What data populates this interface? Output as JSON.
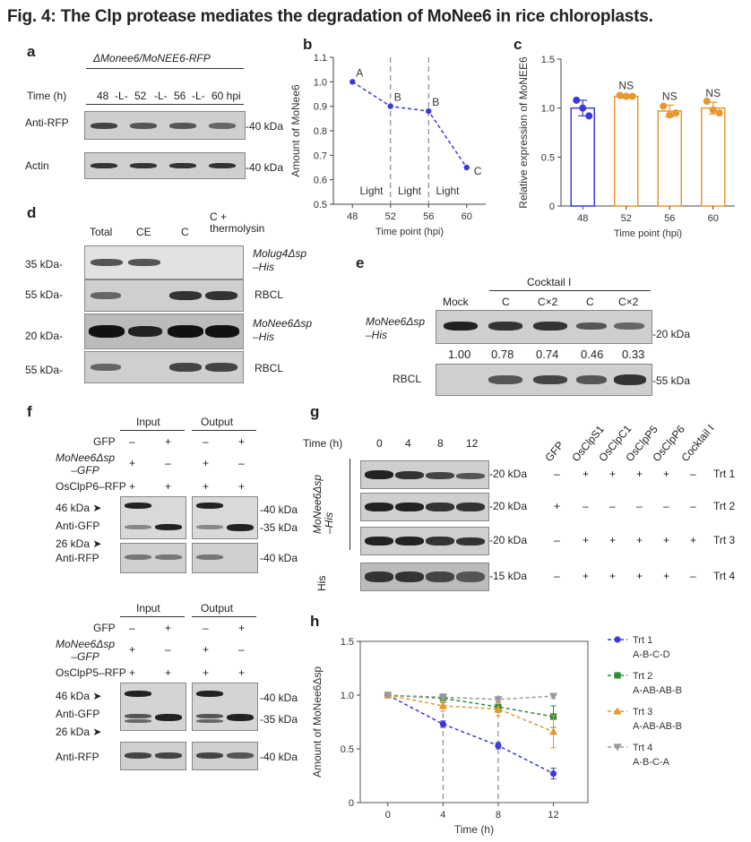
{
  "figure_title": "Fig. 4: The Clp protease mediates the degradation of MoNee6 in rice chloroplasts.",
  "panel_a": {
    "label": "a",
    "strain": "ΔMonee6/MoNEE6-RFP",
    "time_label": "Time (h)",
    "timepoints": [
      "48",
      "-L-",
      "52",
      "-L-",
      "56",
      "-L-",
      "60 hpi"
    ],
    "rows": [
      "Anti-RFP",
      "Actin"
    ],
    "kda_rfp": "-40 kDa",
    "kda_actin": "-40 kDa"
  },
  "panel_d": {
    "label": "d",
    "lanes": [
      "Total",
      "CE",
      "C",
      "C +\nthermolysin"
    ],
    "rows": [
      {
        "kda": "35 kDa-",
        "name": "Molug4Δsp\n–His"
      },
      {
        "kda": "55 kDa-",
        "name": "RBCL"
      },
      {
        "kda": "20 kDa-",
        "name": "MoNee6Δsp\n–His"
      },
      {
        "kda": "55 kDa-",
        "name": "RBCL"
      }
    ]
  },
  "panel_e": {
    "label": "e",
    "cocktail_label": "Cocktail I",
    "lanes": [
      "Mock",
      "C",
      "C×2",
      "C",
      "C×2"
    ],
    "row1_name": "MoNee6Δsp\n–His",
    "row1_kda": "-20 kDa",
    "values": [
      "1.00",
      "0.78",
      "0.74",
      "0.46",
      "0.33"
    ],
    "row2_name": "RBCL",
    "row2_kda": "-55 kDa"
  },
  "panel_f": {
    "label": "f",
    "input_label": "Input",
    "output_label": "Output",
    "gfp_label": "GFP",
    "gfp_signs": [
      "–",
      "+",
      "–",
      "+"
    ],
    "monee6_label": "MoNee6Δsp\n–GFP",
    "monee6_signs": [
      "+",
      "–",
      "+",
      "–"
    ],
    "clp6_label": "OsClpP6–RFP",
    "clp5_label": "OsClpP5–RFP",
    "clp_signs": [
      "+",
      "+",
      "+",
      "+"
    ],
    "kda46": "46 kDa ➤",
    "kda26": "26 kDa ➤",
    "anti_gfp": "Anti-GFP",
    "anti_rfp": "Anti-RFP",
    "kda40": "-40 kDa",
    "kda35": "-35 kDa"
  },
  "panel_g": {
    "label": "g",
    "time_label": "Time (h)",
    "times": [
      "0",
      "4",
      "8",
      "12"
    ],
    "columns": [
      "GFP",
      "OsClpS1",
      "OsClpC1",
      "OsClpP5",
      "OsClpP6",
      "Cocktail I"
    ],
    "side_label": "MoNee6Δsp\n–His",
    "his_label": "His",
    "rows": [
      {
        "kda": "-20 kDa",
        "signs": [
          "–",
          "+",
          "+",
          "+",
          "+",
          "–"
        ],
        "trt": "Trt 1"
      },
      {
        "kda": "-20 kDa",
        "signs": [
          "+",
          "–",
          "–",
          "–",
          "–",
          "–"
        ],
        "trt": "Trt 2"
      },
      {
        "kda": "-20 kDa",
        "signs": [
          "–",
          "+",
          "+",
          "+",
          "+",
          "+"
        ],
        "trt": "Trt 3"
      },
      {
        "kda": "-15 kDa",
        "signs": [
          "–",
          "+",
          "+",
          "+",
          "+",
          "–"
        ],
        "trt": "Trt 4"
      }
    ]
  },
  "panel_b_label": "b",
  "panel_c_label": "c",
  "panel_h_label": "h",
  "chart_data": [
    {
      "type": "line",
      "panel": "b",
      "x": [
        48,
        52,
        56,
        60
      ],
      "values": [
        1.0,
        0.9,
        0.88,
        0.65
      ],
      "letters": [
        "A",
        "B",
        "B",
        "C"
      ],
      "ylabel": "Amount of MoNee6",
      "xlabel": "Time point (hpi)",
      "ylim": [
        0.5,
        1.1
      ],
      "yticks": [
        "0.5",
        "0.6",
        "0.7",
        "0.8",
        "0.9",
        "1.0",
        "1.1"
      ],
      "xticks": [
        "48",
        "52",
        "56",
        "60"
      ],
      "annotations": [
        "Light",
        "Light",
        "Light"
      ],
      "color": "#3b3bd6"
    },
    {
      "type": "bar",
      "panel": "c",
      "categories": [
        "48",
        "52",
        "56",
        "60"
      ],
      "values": [
        1.0,
        1.12,
        0.97,
        1.0
      ],
      "points": [
        [
          1.08,
          1.0,
          0.92
        ],
        [
          1.13,
          1.12,
          1.12
        ],
        [
          1.02,
          0.93,
          0.95
        ],
        [
          1.07,
          0.98,
          0.95
        ]
      ],
      "errors": [
        0.08,
        0.02,
        0.06,
        0.06
      ],
      "sig": [
        "",
        "NS",
        "NS",
        "NS"
      ],
      "colors": [
        "#3b3bd6",
        "#e8972e",
        "#e8972e",
        "#e8972e"
      ],
      "ylabel": "Relative expression of MoNEE6",
      "xlabel": "Time point (hpi)",
      "ylim": [
        0,
        1.5
      ],
      "yticks": [
        "0",
        "0.5",
        "1.0",
        "1.5"
      ]
    },
    {
      "type": "line",
      "panel": "h",
      "x": [
        0,
        4,
        8,
        12
      ],
      "xticks": [
        "0",
        "4",
        "8",
        "12"
      ],
      "yticks": [
        "0",
        "0.5",
        "1.0",
        "1.5"
      ],
      "ylim": [
        0,
        1.5
      ],
      "xlabel": "Time (h)",
      "ylabel": "Amount of MoNee6Δsp",
      "series": [
        {
          "name": "Trt 1",
          "values": [
            1.0,
            0.73,
            0.53,
            0.27
          ],
          "err": [
            0,
            0.03,
            0.03,
            0.05
          ],
          "letters": "A-B-C-D",
          "color": "#3b3bd6",
          "marker": "circle"
        },
        {
          "name": "Trt 2",
          "values": [
            1.0,
            0.97,
            0.89,
            0.8
          ],
          "err": [
            0,
            0.04,
            0.05,
            0.1
          ],
          "letters": "A-AB-AB-B",
          "color": "#2e8b3c",
          "marker": "square"
        },
        {
          "name": "Trt 3",
          "values": [
            1.0,
            0.9,
            0.87,
            0.66
          ],
          "err": [
            0,
            0.05,
            0.06,
            0.15
          ],
          "letters": "A-AB-AB-B",
          "color": "#e8972e",
          "marker": "triangle"
        },
        {
          "name": "Trt 4",
          "values": [
            1.0,
            0.98,
            0.96,
            0.99
          ],
          "err": [
            0,
            0.02,
            0.02,
            0.02
          ],
          "letters": "A-B-C-A",
          "color": "#999999",
          "marker": "tri-down"
        }
      ]
    }
  ]
}
